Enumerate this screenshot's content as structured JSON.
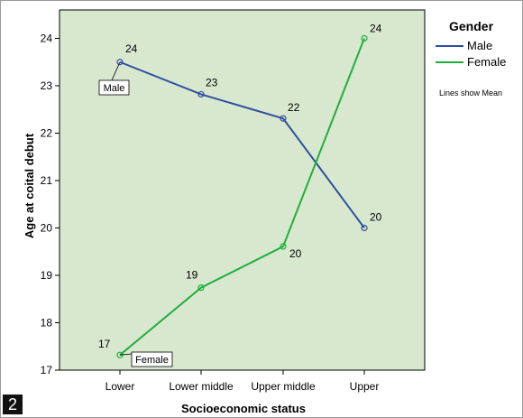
{
  "figure_number": "2",
  "chart_data": {
    "type": "line",
    "categories": [
      "Lower",
      "Lower middle",
      "Upper middle",
      "Upper"
    ],
    "series": [
      {
        "name": "Male",
        "values": [
          23.5,
          22.82,
          22.31,
          20.0
        ],
        "labels": [
          "24",
          "23",
          "22",
          "20"
        ],
        "color": "#2f4fa0"
      },
      {
        "name": "Female",
        "values": [
          17.32,
          18.74,
          19.61,
          24.0
        ],
        "labels": [
          "17",
          "19",
          "20",
          "24"
        ],
        "color": "#1fae3c"
      }
    ],
    "xlabel": "Socioeconomic status",
    "ylabel": "Age at coital debut",
    "ylim": [
      17,
      24.6
    ],
    "yticks": [
      17,
      18,
      19,
      20,
      21,
      22,
      23,
      24
    ],
    "plot_background": "#d8e8cf",
    "grid": false,
    "legend": {
      "title": "Gender",
      "position": "right",
      "note": "Lines show Mean"
    },
    "series_tags": [
      "Male",
      "Female"
    ]
  }
}
